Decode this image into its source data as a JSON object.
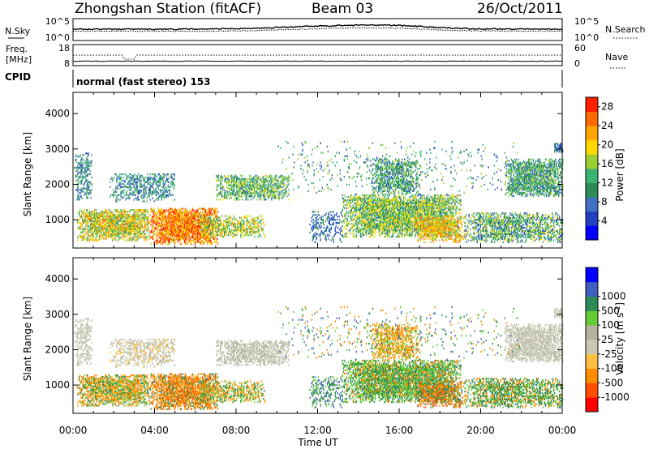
{
  "header": {
    "station": "Zhongshan Station (fitACF)",
    "beam": "Beam 03",
    "date": "26/Oct/2011"
  },
  "noise_panel": {
    "left_label": "N.Sky",
    "right_label": "N.Search",
    "left_ticks": [
      "10^5",
      "10^0"
    ],
    "right_ticks": [
      "10^5",
      "10^0"
    ]
  },
  "freq_panel": {
    "left_label_1": "Freq.",
    "left_label_2": "[MHz]",
    "right_label": "Nave",
    "left_ticks": [
      "18",
      "8"
    ],
    "right_ticks": [
      "60",
      "0"
    ]
  },
  "cpid_panel": {
    "label": "CPID",
    "text": "normal (fast stereo) 153"
  },
  "colors": {
    "power_scale": [
      "#0000ff",
      "#2040c0",
      "#4070c0",
      "#2e8b57",
      "#3cb371",
      "#9acd32",
      "#ffd700",
      "#ffa500",
      "#ff6a00",
      "#ff2000"
    ],
    "velocity_scale": [
      "#ff0000",
      "#ff5000",
      "#ff8c00",
      "#ffc040",
      "#c8c8b4",
      "#b4b4a0",
      "#66cc33",
      "#2e8b57",
      "#4060c0",
      "#0000ff"
    ]
  },
  "chart_data": [
    {
      "type": "heatmap",
      "name": "power",
      "ylabel": "Slant Range [km]",
      "yticks": [
        "1000",
        "2000",
        "3000",
        "4000"
      ],
      "ylim": [
        200,
        4600
      ],
      "colorbar_label": "Power [dB]",
      "colorbar_ticks": [
        "4",
        "8",
        "12",
        "16",
        "20",
        "24",
        "28"
      ],
      "colorbar_range": [
        0,
        30
      ]
    },
    {
      "type": "heatmap",
      "name": "velocity",
      "ylabel": "Slant Range [km]",
      "yticks": [
        "1000",
        "2000",
        "3000",
        "4000"
      ],
      "ylim": [
        200,
        4600
      ],
      "colorbar_label": "Velocity [m s^-1]",
      "colorbar_ticks": [
        "-1000",
        "-500",
        "-100",
        "-25",
        "25",
        "100",
        "500",
        "1000"
      ],
      "xlabel": "Time UT",
      "xticks": [
        "00:00",
        "04:00",
        "08:00",
        "12:00",
        "16:00",
        "20:00",
        "00:00"
      ]
    }
  ]
}
